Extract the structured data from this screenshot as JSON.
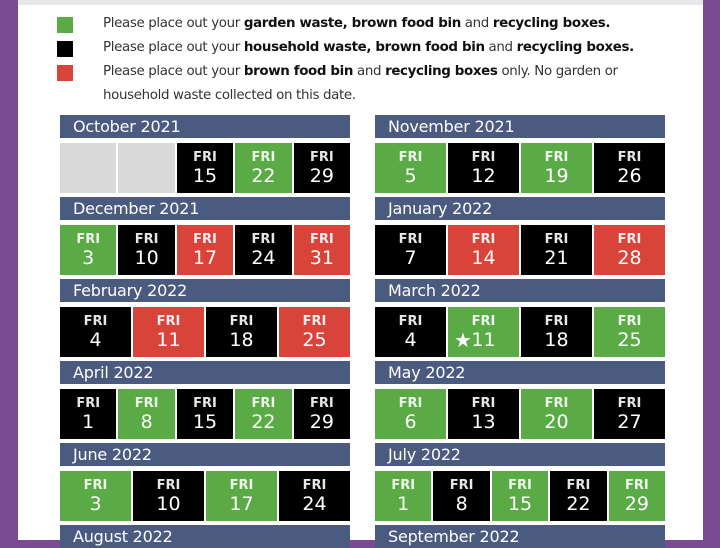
{
  "colors": {
    "green": "#5aab45",
    "black": "#000000",
    "red": "#d8443a",
    "empty": "#d9d9d9",
    "header": "#4b5a7f",
    "frame": "#7a4a92"
  },
  "legend": [
    {
      "color": "green",
      "parts": [
        [
          "Please place out your ",
          false
        ],
        [
          "garden waste, brown food bin",
          true
        ],
        [
          " and ",
          false
        ],
        [
          "recycling boxes.",
          true
        ]
      ]
    },
    {
      "color": "black",
      "parts": [
        [
          "Please place out your ",
          false
        ],
        [
          "household waste, brown food bin",
          true
        ],
        [
          " and ",
          false
        ],
        [
          "recycling boxes.",
          true
        ]
      ]
    },
    {
      "color": "red",
      "parts": [
        [
          "Please place out your ",
          false
        ],
        [
          "brown food bin",
          true
        ],
        [
          " and ",
          false
        ],
        [
          "recycling boxes",
          true
        ],
        [
          " only. No garden or",
          false
        ]
      ],
      "line2": "household waste collected on this date."
    }
  ],
  "day_label": "FRI",
  "months": [
    {
      "title": "October 2021",
      "cells": [
        [
          "empty",
          ""
        ],
        [
          "empty",
          ""
        ],
        [
          "black",
          "15"
        ],
        [
          "green",
          "22"
        ],
        [
          "black",
          "29"
        ]
      ]
    },
    {
      "title": "November 2021",
      "cells": [
        [
          "green",
          "5"
        ],
        [
          "black",
          "12"
        ],
        [
          "green",
          "19"
        ],
        [
          "black",
          "26"
        ]
      ]
    },
    {
      "title": "December 2021",
      "cells": [
        [
          "green",
          "3"
        ],
        [
          "black",
          "10"
        ],
        [
          "red",
          "17"
        ],
        [
          "black",
          "24"
        ],
        [
          "red",
          "31"
        ]
      ]
    },
    {
      "title": "January 2022",
      "cells": [
        [
          "black",
          "7"
        ],
        [
          "red",
          "14"
        ],
        [
          "black",
          "21"
        ],
        [
          "red",
          "28"
        ]
      ]
    },
    {
      "title": "February 2022",
      "cells": [
        [
          "black",
          "4"
        ],
        [
          "red",
          "11"
        ],
        [
          "black",
          "18"
        ],
        [
          "red",
          "25"
        ]
      ]
    },
    {
      "title": "March 2022",
      "cells": [
        [
          "black",
          "4"
        ],
        [
          "green",
          "11",
          "star"
        ],
        [
          "black",
          "18"
        ],
        [
          "green",
          "25"
        ]
      ]
    },
    {
      "title": "April 2022",
      "cells": [
        [
          "black",
          "1"
        ],
        [
          "green",
          "8"
        ],
        [
          "black",
          "15"
        ],
        [
          "green",
          "22"
        ],
        [
          "black",
          "29"
        ]
      ]
    },
    {
      "title": "May 2022",
      "cells": [
        [
          "green",
          "6"
        ],
        [
          "black",
          "13"
        ],
        [
          "green",
          "20"
        ],
        [
          "black",
          "27"
        ]
      ]
    },
    {
      "title": "June 2022",
      "cells": [
        [
          "green",
          "3"
        ],
        [
          "black",
          "10"
        ],
        [
          "green",
          "17"
        ],
        [
          "black",
          "24"
        ]
      ]
    },
    {
      "title": "July 2022",
      "cells": [
        [
          "green",
          "1"
        ],
        [
          "black",
          "8"
        ],
        [
          "green",
          "15"
        ],
        [
          "black",
          "22"
        ],
        [
          "green",
          "29"
        ]
      ]
    },
    {
      "title": "August 2022",
      "cells": []
    },
    {
      "title": "September 2022",
      "cells": []
    }
  ]
}
